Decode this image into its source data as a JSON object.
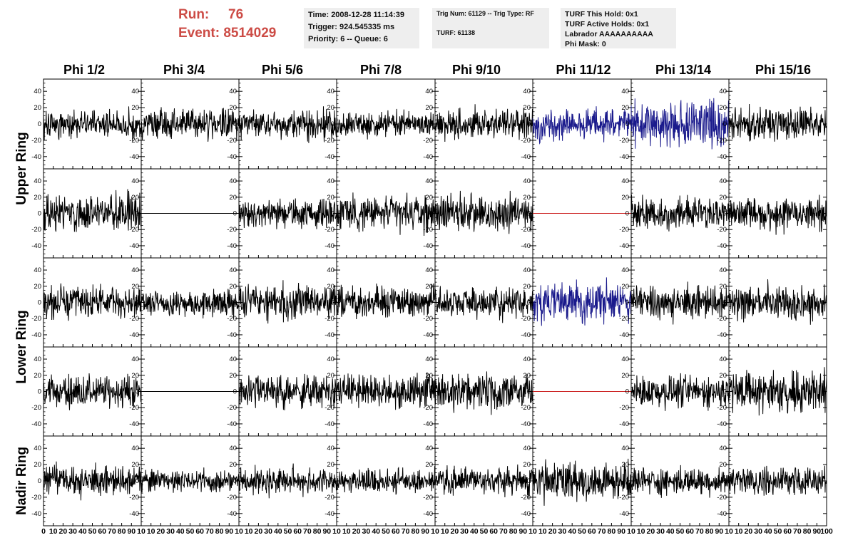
{
  "header": {
    "run_label": "Run:",
    "run_value": "76",
    "event_label": "Event:",
    "event_value": "8514029",
    "color": "#cc4b45"
  },
  "info": {
    "time": "Time: 2008-12-28 11:14:39",
    "trigger": "Trigger: 924.545335 ms",
    "priority": "Priority: 6 -- Queue: 6",
    "trig_num": "Trig Num: 61129 -- Trig Type: RF",
    "turf": "TURF: 61138",
    "turf_this_hold": "TURF This Hold: 0x1",
    "turf_active_holds": "TURF Active Holds: 0x1",
    "labrador": "Labrador AAAAAAAAAA",
    "phi_mask": "Phi Mask: 0"
  },
  "chart_data": {
    "type": "line",
    "columns": [
      "Phi 1/2",
      "Phi 3/4",
      "Phi 5/6",
      "Phi 7/8",
      "Phi 9/10",
      "Phi 11/12",
      "Phi 13/14",
      "Phi 15/16"
    ],
    "rows": [
      {
        "group": "Upper Ring",
        "index": 0
      },
      {
        "group": "Upper Ring",
        "index": 1
      },
      {
        "group": "Lower Ring",
        "index": 2
      },
      {
        "group": "Lower Ring",
        "index": 3
      },
      {
        "group": "Nadir Ring",
        "index": 4
      }
    ],
    "row_labels": [
      "Upper Ring",
      "Lower Ring",
      "Nadir Ring"
    ],
    "xlim": [
      0,
      100
    ],
    "ylim": [
      -55,
      55
    ],
    "y_ticks": [
      40,
      20,
      0,
      -20,
      -40
    ],
    "x_ticks": [
      0,
      10,
      20,
      30,
      40,
      50,
      60,
      70,
      80,
      90,
      100
    ],
    "x_tick_labels_first": [
      "0",
      "10",
      "20",
      "30",
      "40",
      "50",
      "60",
      "70",
      "80",
      "90",
      "10"
    ],
    "x_tick_labels_rest": [
      "",
      "10",
      "20",
      "30",
      "40",
      "50",
      "60",
      "70",
      "80",
      "90",
      "10"
    ],
    "x_tick_label_end": "100",
    "waveform_samples": 260,
    "colors": {
      "default": "#000000",
      "triggered": "#1a1a8c",
      "flat_dead": "#cc2222",
      "flat_black": "#000000"
    },
    "channels": [
      [
        {
          "amp": 13,
          "mode": "noise",
          "color": "default",
          "seed": 11
        },
        {
          "amp": 14,
          "mode": "noise",
          "color": "default",
          "seed": 12
        },
        {
          "amp": 14,
          "mode": "noise",
          "color": "default",
          "seed": 13
        },
        {
          "amp": 12,
          "mode": "noise",
          "color": "default",
          "seed": 14
        },
        {
          "amp": 14,
          "mode": "noise",
          "color": "default",
          "seed": 15
        },
        {
          "amp": 15,
          "mode": "noise",
          "color": "triggered",
          "seed": 16
        },
        {
          "amp": 22,
          "mode": "noise",
          "color": "triggered",
          "seed": 17
        },
        {
          "amp": 15,
          "mode": "noise",
          "color": "default",
          "seed": 18
        }
      ],
      [
        {
          "amp": 18,
          "mode": "noise",
          "color": "default",
          "seed": 21
        },
        {
          "amp": 0,
          "mode": "flat",
          "color": "flat_black",
          "seed": 22
        },
        {
          "amp": 14,
          "mode": "noise",
          "color": "default",
          "seed": 23
        },
        {
          "amp": 17,
          "mode": "noise",
          "color": "default",
          "seed": 24
        },
        {
          "amp": 17,
          "mode": "noise",
          "color": "default",
          "seed": 25
        },
        {
          "amp": 0,
          "mode": "flat",
          "color": "flat_dead",
          "seed": 26
        },
        {
          "amp": 15,
          "mode": "noise",
          "color": "default",
          "seed": 27
        },
        {
          "amp": 16,
          "mode": "noise",
          "color": "default",
          "seed": 28
        }
      ],
      [
        {
          "amp": 15,
          "mode": "noise",
          "color": "default",
          "seed": 31
        },
        {
          "amp": 12,
          "mode": "noise",
          "color": "default",
          "seed": 32
        },
        {
          "amp": 16,
          "mode": "noise",
          "color": "default",
          "seed": 33
        },
        {
          "amp": 14,
          "mode": "noise",
          "color": "default",
          "seed": 34
        },
        {
          "amp": 14,
          "mode": "noise",
          "color": "default",
          "seed": 35
        },
        {
          "amp": 18,
          "mode": "noise",
          "color": "triggered",
          "seed": 36
        },
        {
          "amp": 16,
          "mode": "noise",
          "color": "default",
          "seed": 37
        },
        {
          "amp": 16,
          "mode": "noise",
          "color": "default",
          "seed": 38
        }
      ],
      [
        {
          "amp": 15,
          "mode": "noise",
          "color": "default",
          "seed": 41
        },
        {
          "amp": 0,
          "mode": "flat",
          "color": "flat_black",
          "seed": 42
        },
        {
          "amp": 16,
          "mode": "noise",
          "color": "default",
          "seed": 43
        },
        {
          "amp": 16,
          "mode": "noise",
          "color": "default",
          "seed": 44
        },
        {
          "amp": 17,
          "mode": "noise",
          "color": "default",
          "seed": 45
        },
        {
          "amp": 0,
          "mode": "flat",
          "color": "flat_dead",
          "seed": 46
        },
        {
          "amp": 15,
          "mode": "noise",
          "color": "default",
          "seed": 47
        },
        {
          "amp": 20,
          "mode": "noise",
          "color": "default",
          "seed": 48
        }
      ],
      [
        {
          "amp": 14,
          "mode": "noise",
          "color": "default",
          "seed": 51
        },
        {
          "amp": 11,
          "mode": "noise",
          "color": "default",
          "seed": 52
        },
        {
          "amp": 13,
          "mode": "noise",
          "color": "default",
          "seed": 53
        },
        {
          "amp": 12,
          "mode": "noise",
          "color": "default",
          "seed": 54
        },
        {
          "amp": 13,
          "mode": "noise",
          "color": "default",
          "seed": 55
        },
        {
          "amp": 18,
          "mode": "noise",
          "color": "default",
          "seed": 56
        },
        {
          "amp": 13,
          "mode": "noise",
          "color": "default",
          "seed": 57
        },
        {
          "amp": 13,
          "mode": "noise",
          "color": "default",
          "seed": 58
        }
      ]
    ]
  }
}
